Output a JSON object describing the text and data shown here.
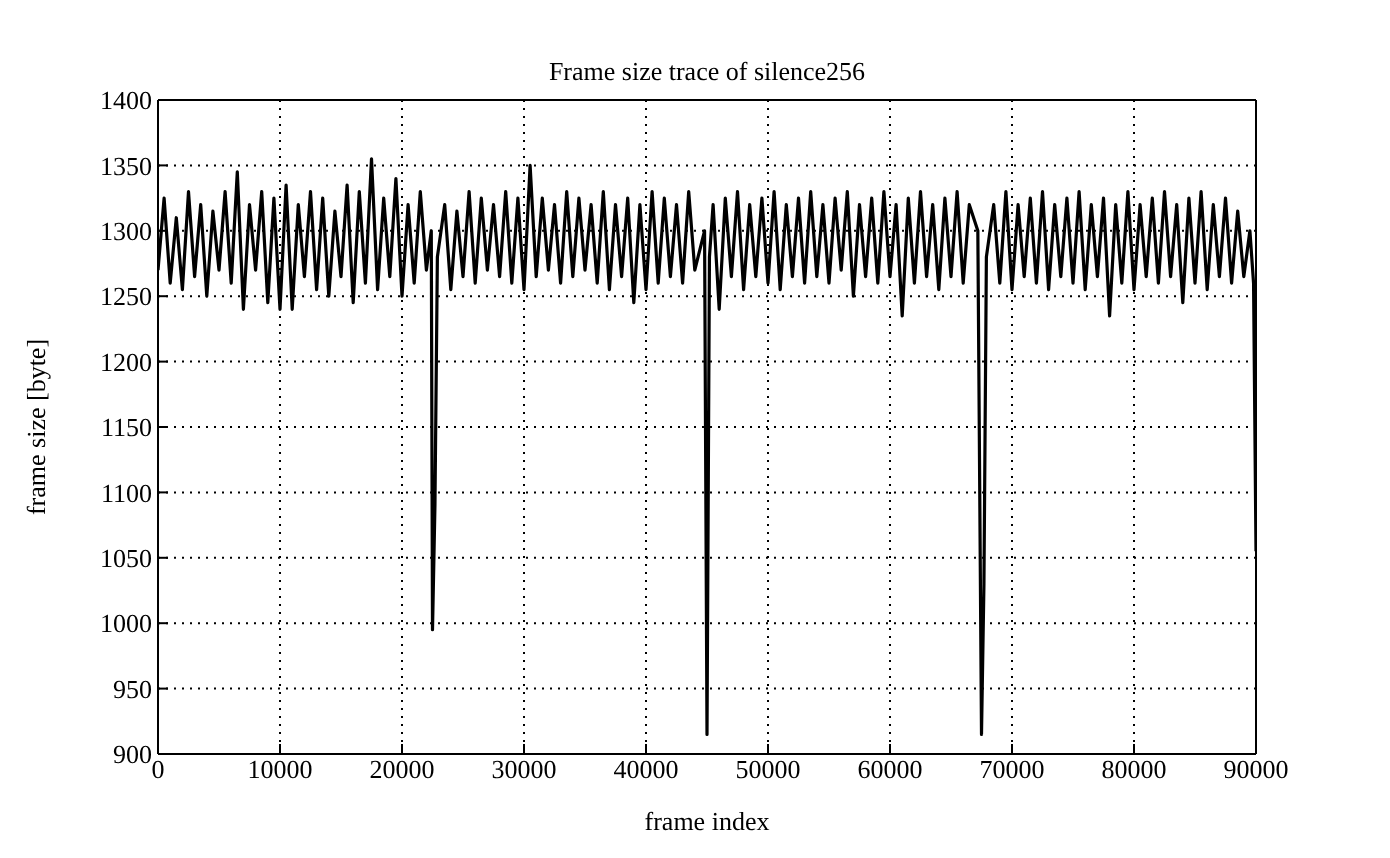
{
  "chart_data": {
    "type": "line",
    "title": "Frame size trace of silence256",
    "xlabel": "frame index",
    "ylabel": "frame size [byte]",
    "grid": true,
    "marker": "none",
    "line_style": "solid",
    "xlim": [
      0,
      90000
    ],
    "ylim": [
      900,
      1400
    ],
    "xticks": [
      0,
      10000,
      20000,
      30000,
      40000,
      50000,
      60000,
      70000,
      80000,
      90000
    ],
    "yticks": [
      900,
      950,
      1000,
      1050,
      1100,
      1150,
      1200,
      1250,
      1300,
      1350,
      1400
    ],
    "x": [
      0,
      500,
      1000,
      1500,
      2000,
      2500,
      3000,
      3500,
      4000,
      4500,
      5000,
      5500,
      6000,
      6500,
      7000,
      7500,
      8000,
      8500,
      9000,
      9500,
      10000,
      10500,
      11000,
      11500,
      12000,
      12500,
      13000,
      13500,
      14000,
      14500,
      15000,
      15500,
      16000,
      16500,
      17000,
      17500,
      18000,
      18500,
      19000,
      19500,
      20000,
      20500,
      21000,
      21500,
      22000,
      22400,
      22500,
      22700,
      22900,
      23500,
      24000,
      24500,
      25000,
      25500,
      26000,
      26500,
      27000,
      27500,
      28000,
      28500,
      29000,
      29500,
      30000,
      30500,
      31000,
      31500,
      32000,
      32500,
      33000,
      33500,
      34000,
      34500,
      35000,
      35500,
      36000,
      36500,
      37000,
      37500,
      38000,
      38500,
      39000,
      39500,
      40000,
      40500,
      41000,
      41500,
      42000,
      42500,
      43000,
      43500,
      44000,
      44800,
      45000,
      45200,
      45500,
      46000,
      46500,
      47000,
      47500,
      48000,
      48500,
      49000,
      49500,
      50000,
      50500,
      51000,
      51500,
      52000,
      52500,
      53000,
      53500,
      54000,
      54500,
      55000,
      55500,
      56000,
      56500,
      57000,
      57500,
      58000,
      58500,
      59000,
      59500,
      60000,
      60500,
      61000,
      61500,
      62000,
      62500,
      63000,
      63500,
      64000,
      64500,
      65000,
      65500,
      66000,
      66500,
      67200,
      67500,
      67700,
      67900,
      68500,
      69000,
      69500,
      70000,
      70500,
      71000,
      71500,
      72000,
      72500,
      73000,
      73500,
      74000,
      74500,
      75000,
      75500,
      76000,
      76500,
      77000,
      77500,
      78000,
      78500,
      79000,
      79500,
      80000,
      80500,
      81000,
      81500,
      82000,
      82500,
      83000,
      83500,
      84000,
      84500,
      85000,
      85500,
      86000,
      86500,
      87000,
      87500,
      88000,
      88500,
      89000,
      89500,
      89800,
      90000
    ],
    "series": [
      {
        "color": "#000000",
        "values": [
          1270,
          1325,
          1260,
          1310,
          1255,
          1330,
          1265,
          1320,
          1250,
          1315,
          1270,
          1330,
          1260,
          1345,
          1240,
          1320,
          1270,
          1330,
          1245,
          1325,
          1240,
          1335,
          1240,
          1320,
          1265,
          1330,
          1255,
          1325,
          1250,
          1315,
          1265,
          1335,
          1245,
          1330,
          1260,
          1355,
          1255,
          1325,
          1265,
          1340,
          1250,
          1320,
          1260,
          1330,
          1270,
          1300,
          995,
          1090,
          1280,
          1320,
          1255,
          1315,
          1265,
          1330,
          1260,
          1325,
          1270,
          1320,
          1265,
          1330,
          1260,
          1325,
          1255,
          1350,
          1265,
          1325,
          1270,
          1320,
          1260,
          1330,
          1265,
          1325,
          1270,
          1320,
          1260,
          1330,
          1255,
          1320,
          1265,
          1325,
          1245,
          1320,
          1255,
          1330,
          1260,
          1325,
          1265,
          1320,
          1260,
          1330,
          1270,
          1300,
          915,
          1280,
          1320,
          1240,
          1325,
          1265,
          1330,
          1255,
          1320,
          1265,
          1325,
          1260,
          1330,
          1255,
          1320,
          1265,
          1325,
          1260,
          1330,
          1265,
          1320,
          1260,
          1325,
          1270,
          1330,
          1250,
          1320,
          1265,
          1325,
          1260,
          1330,
          1265,
          1320,
          1235,
          1325,
          1260,
          1330,
          1265,
          1320,
          1255,
          1325,
          1265,
          1330,
          1260,
          1320,
          1300,
          915,
          1030,
          1280,
          1320,
          1260,
          1330,
          1255,
          1320,
          1265,
          1325,
          1260,
          1330,
          1255,
          1320,
          1265,
          1325,
          1260,
          1330,
          1255,
          1320,
          1265,
          1325,
          1235,
          1320,
          1260,
          1330,
          1255,
          1320,
          1265,
          1325,
          1260,
          1330,
          1265,
          1320,
          1245,
          1325,
          1260,
          1330,
          1255,
          1320,
          1265,
          1325,
          1260,
          1315,
          1265,
          1300,
          1260,
          1055
        ]
      }
    ]
  }
}
